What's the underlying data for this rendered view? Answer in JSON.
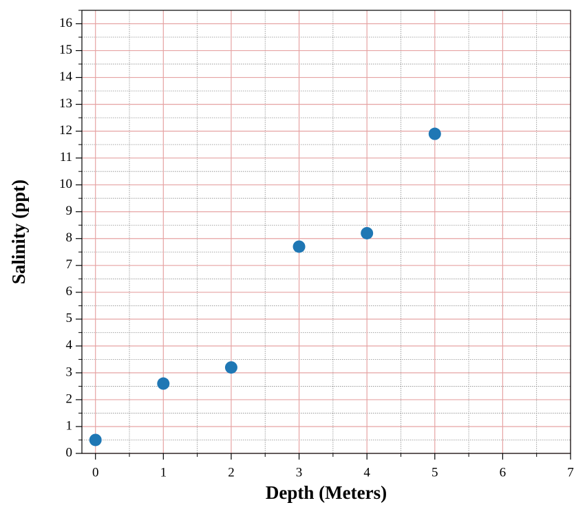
{
  "chart_data": {
    "type": "scatter",
    "x_label": "Depth (Meters)",
    "y_label": "Salinity (ppt)",
    "series": [
      {
        "color": "#1f77b4",
        "x": [
          0,
          1,
          2,
          3,
          4,
          5
        ],
        "values": [
          0.5,
          2.6,
          3.2,
          7.7,
          8.2,
          11.9
        ]
      }
    ],
    "xlim": [
      -0.2,
      7
    ],
    "ylim": [
      0,
      16.5
    ],
    "xticks": [
      0,
      1,
      2,
      3,
      4,
      5,
      6,
      7
    ],
    "yticks": [
      0,
      1,
      2,
      3,
      4,
      5,
      6,
      7,
      8,
      9,
      10,
      11,
      12,
      13,
      14,
      15,
      16
    ],
    "xminorticks": [
      0.5,
      1.5,
      2.5,
      3.5,
      4.5,
      5.5,
      6.5
    ],
    "yminorticks": [
      0.5,
      1.5,
      2.5,
      3.5,
      4.5,
      5.5,
      6.5,
      7.5,
      8.5,
      9.5,
      10.5,
      11.5,
      12.5,
      13.5,
      14.5,
      15.5,
      16.5
    ],
    "grid": true,
    "major_grid_color": "#e6a3a3",
    "minor_grid_color": "#888888"
  }
}
